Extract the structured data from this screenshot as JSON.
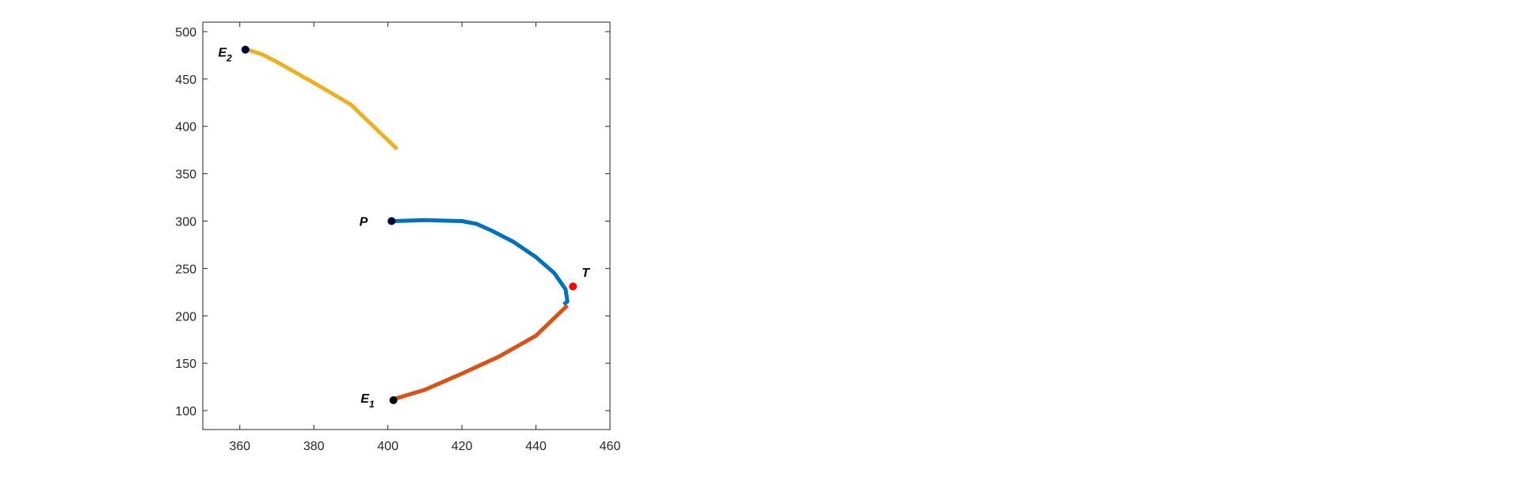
{
  "chart_data": {
    "type": "line",
    "title": "",
    "xlabel": "",
    "ylabel": "",
    "xlim": [
      350,
      460
    ],
    "ylim": [
      80,
      510
    ],
    "xticks": [
      360,
      380,
      400,
      420,
      440,
      460
    ],
    "yticks": [
      100,
      150,
      200,
      250,
      300,
      350,
      400,
      450,
      500
    ],
    "grid": false,
    "box": true,
    "series": [
      {
        "color": "#0072BD",
        "points": [
          [
            401,
            300
          ],
          [
            410,
            301
          ],
          [
            420,
            300
          ],
          [
            424,
            297
          ],
          [
            428,
            290
          ],
          [
            434,
            278
          ],
          [
            440,
            262
          ],
          [
            445,
            245
          ],
          [
            448,
            228
          ],
          [
            448.5,
            215
          ],
          [
            447.5,
            212
          ]
        ]
      },
      {
        "color": "#D95319",
        "points": [
          [
            401.5,
            112
          ],
          [
            410,
            122
          ],
          [
            420,
            139
          ],
          [
            430,
            157
          ],
          [
            440,
            179
          ],
          [
            448.5,
            211
          ]
        ]
      },
      {
        "color": "#EDB120",
        "points": [
          [
            362,
            481
          ],
          [
            366,
            476
          ],
          [
            370,
            468
          ],
          [
            380,
            446
          ],
          [
            390,
            423
          ],
          [
            402.5,
            376
          ]
        ]
      }
    ],
    "markers": [
      {
        "label": "P",
        "subscript": "",
        "x": 401,
        "y": 300,
        "color": "#000033"
      },
      {
        "label": "E",
        "subscript": "1",
        "x": 401.5,
        "y": 111,
        "color": "#000000"
      },
      {
        "label": "E",
        "subscript": "2",
        "x": 361.5,
        "y": 481,
        "color": "#000033"
      },
      {
        "label": "T",
        "subscript": "",
        "x": 450,
        "y": 231,
        "color": "#FF0000"
      }
    ]
  }
}
